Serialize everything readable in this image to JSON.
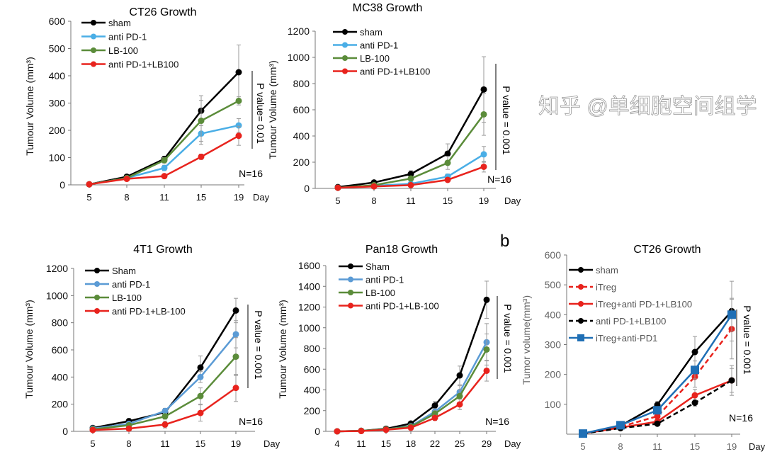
{
  "panel_labels": {
    "b": "b"
  },
  "watermark": "知乎 @单细胞空间组学",
  "colors": {
    "black": "#000000",
    "light_blue": "#4aaee6",
    "green": "#5b8c3a",
    "red": "#e8231d",
    "blue": "#1f6fb5",
    "grey_text": "#666666"
  },
  "chart_data": [
    {
      "type": "line",
      "title": "CT26 Growth",
      "ylabel": "Tumour Volume (mm³)",
      "xlabel": "Day",
      "categories": [
        "5",
        "8",
        "11",
        "15",
        "19"
      ],
      "ylim": [
        0,
        600
      ],
      "yticks": [
        0,
        100,
        200,
        300,
        400,
        500,
        600
      ],
      "legend": "top-left",
      "grid": false,
      "annotation_p": "P value= 0.01",
      "annotation_n": "N=16",
      "series": [
        {
          "name": "sham",
          "color": "#000000",
          "dash": false,
          "marker": "circle",
          "values": [
            2,
            30,
            95,
            272,
            413
          ],
          "errors": [
            0,
            5,
            10,
            55,
            100
          ]
        },
        {
          "name": "anti PD-1",
          "color": "#4aaee6",
          "dash": false,
          "marker": "circle",
          "values": [
            2,
            25,
            62,
            188,
            218
          ],
          "errors": [
            0,
            4,
            10,
            40,
            25
          ]
        },
        {
          "name": "LB-100",
          "color": "#5b8c3a",
          "dash": false,
          "marker": "circle",
          "values": [
            2,
            25,
            90,
            235,
            308
          ],
          "errors": [
            0,
            4,
            10,
            75,
            15
          ]
        },
        {
          "name": "anti PD-1+LB100",
          "color": "#e8231d",
          "dash": false,
          "marker": "circle",
          "values": [
            2,
            22,
            32,
            103,
            180
          ],
          "errors": [
            0,
            3,
            5,
            10,
            35
          ]
        }
      ]
    },
    {
      "type": "line",
      "title": "MC38 Growth",
      "ylabel": "Tumour Volume (mm³)",
      "xlabel": "Day",
      "categories": [
        "5",
        "8",
        "11",
        "15",
        "19"
      ],
      "ylim": [
        0,
        1200
      ],
      "yticks": [
        0,
        200,
        400,
        600,
        800,
        1000,
        1200
      ],
      "legend": "top-left",
      "grid": false,
      "annotation_p": "P value = 0.001",
      "annotation_n": "N=16",
      "series": [
        {
          "name": "sham",
          "color": "#000000",
          "dash": false,
          "marker": "circle",
          "values": [
            10,
            45,
            110,
            265,
            755
          ],
          "errors": [
            0,
            10,
            25,
            75,
            250
          ]
        },
        {
          "name": "anti PD-1",
          "color": "#4aaee6",
          "dash": false,
          "marker": "circle",
          "values": [
            5,
            20,
            35,
            90,
            260
          ],
          "errors": [
            0,
            5,
            10,
            20,
            60
          ]
        },
        {
          "name": "LB-100",
          "color": "#5b8c3a",
          "dash": false,
          "marker": "circle",
          "values": [
            5,
            25,
            75,
            195,
            565
          ],
          "errors": [
            0,
            5,
            15,
            50,
            160
          ]
        },
        {
          "name": "anti PD-1+LB100",
          "color": "#e8231d",
          "dash": false,
          "marker": "circle",
          "values": [
            5,
            15,
            25,
            65,
            165
          ],
          "errors": [
            0,
            5,
            8,
            15,
            40
          ]
        }
      ]
    },
    {
      "type": "line",
      "title": "4T1 Growth",
      "ylabel": "Tumour Volume (mm³)",
      "xlabel": "Day",
      "categories": [
        "5",
        "8",
        "11",
        "15",
        "19"
      ],
      "ylim": [
        0,
        1200
      ],
      "yticks": [
        0,
        200,
        400,
        600,
        800,
        1000,
        1200
      ],
      "legend": "top-left",
      "grid": false,
      "annotation_p": "P value = 0.001",
      "annotation_n": "N=16",
      "series": [
        {
          "name": "Sham",
          "color": "#000000",
          "dash": false,
          "marker": "circle",
          "values": [
            25,
            75,
            140,
            470,
            890
          ],
          "errors": [
            5,
            20,
            25,
            85,
            90
          ]
        },
        {
          "name": "anti PD-1",
          "color": "#5b9bd5",
          "dash": false,
          "marker": "circle",
          "values": [
            20,
            55,
            150,
            400,
            715
          ],
          "errors": [
            5,
            15,
            20,
            40,
            100
          ]
        },
        {
          "name": "LB-100",
          "color": "#5b8c3a",
          "dash": false,
          "marker": "circle",
          "values": [
            15,
            45,
            110,
            260,
            550
          ],
          "errors": [
            5,
            10,
            20,
            60,
            140
          ]
        },
        {
          "name": "anti PD-1+LB-100",
          "color": "#e8231d",
          "dash": false,
          "marker": "circle",
          "values": [
            10,
            20,
            50,
            135,
            320
          ],
          "errors": [
            3,
            8,
            25,
            60,
            100
          ]
        }
      ]
    },
    {
      "type": "line",
      "title": "Pan18 Growth",
      "ylabel": "Tumour Volume (mm³)",
      "xlabel": "Day",
      "categories": [
        "4",
        "11",
        "15",
        "18",
        "22",
        "25",
        "29"
      ],
      "ylim": [
        0,
        1600
      ],
      "yticks": [
        0,
        200,
        400,
        600,
        800,
        1000,
        1200,
        1400,
        1600
      ],
      "legend": "top-left",
      "grid": false,
      "annotation_p": "P value = 0.001",
      "annotation_n": "N=16",
      "series": [
        {
          "name": "Sham",
          "color": "#000000",
          "dash": false,
          "marker": "circle",
          "values": [
            0,
            5,
            25,
            75,
            250,
            540,
            1270
          ],
          "errors": [
            0,
            3,
            8,
            15,
            40,
            90,
            180
          ]
        },
        {
          "name": "anti PD-1",
          "color": "#5b9bd5",
          "dash": false,
          "marker": "circle",
          "values": [
            0,
            5,
            20,
            50,
            190,
            380,
            860
          ],
          "errors": [
            0,
            3,
            6,
            12,
            30,
            60,
            180
          ]
        },
        {
          "name": "LB-100",
          "color": "#5b8c3a",
          "dash": false,
          "marker": "circle",
          "values": [
            0,
            5,
            20,
            45,
            170,
            340,
            790
          ],
          "errors": [
            0,
            3,
            6,
            12,
            30,
            60,
            150
          ]
        },
        {
          "name": "anti PD-1+LB-100",
          "color": "#e8231d",
          "dash": false,
          "marker": "circle",
          "values": [
            0,
            3,
            15,
            35,
            130,
            260,
            585
          ],
          "errors": [
            0,
            2,
            5,
            10,
            25,
            50,
            100
          ]
        }
      ]
    },
    {
      "type": "line",
      "title": "CT26 Growth",
      "ylabel": "Tumor volume(mm³)",
      "xlabel": "Day",
      "categories": [
        "5",
        "8",
        "11",
        "15",
        "19"
      ],
      "ylim": [
        0,
        600
      ],
      "yticks": [
        100,
        200,
        300,
        400,
        500,
        600
      ],
      "legend": "top-left",
      "grid": false,
      "annotation_p": "P value = 0.001",
      "annotation_n": "N=16",
      "series": [
        {
          "name": "sham",
          "color": "#000000",
          "dash": false,
          "marker": "circle",
          "values": [
            2,
            28,
            98,
            275,
            412
          ],
          "errors": [
            0,
            5,
            12,
            52,
            100
          ]
        },
        {
          "name": "iTreg",
          "color": "#e8231d",
          "dash": true,
          "marker": "circle",
          "values": [
            2,
            25,
            60,
            192,
            352
          ],
          "errors": [
            0,
            5,
            10,
            35,
            100
          ]
        },
        {
          "name": "iTreg+anti PD-1+LB100",
          "color": "#e8231d",
          "dash": false,
          "marker": "circle",
          "values": [
            2,
            22,
            42,
            130,
            180
          ],
          "errors": [
            0,
            4,
            8,
            20,
            40
          ]
        },
        {
          "name": "anti PD-1+LB100",
          "color": "#000000",
          "dash": true,
          "marker": "circle",
          "values": [
            2,
            20,
            35,
            105,
            180
          ],
          "errors": [
            0,
            4,
            6,
            12,
            50
          ]
        },
        {
          "name": "iTreg+anti-PD1",
          "color": "#1f6fb5",
          "dash": false,
          "marker": "square",
          "values": [
            2,
            30,
            80,
            215,
            400
          ],
          "errors": [
            0,
            5,
            10,
            30,
            55
          ]
        }
      ]
    }
  ]
}
